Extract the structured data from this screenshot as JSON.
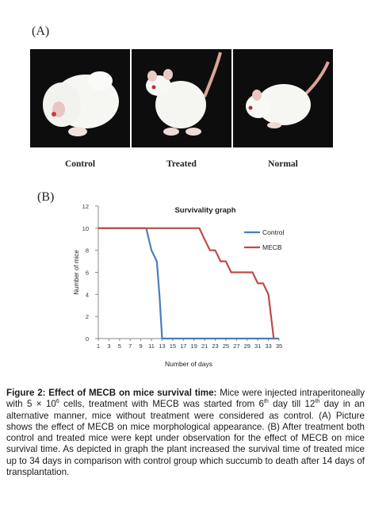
{
  "panel_a_label": "(A)",
  "panel_b_label": "(B)",
  "photos": [
    {
      "label": "Control"
    },
    {
      "label": "Treated"
    },
    {
      "label": "Normal"
    }
  ],
  "caption": {
    "figure_label": "Figure 2: Effect of MECB on mice survival time:",
    "p1": "Mice were injected intraperitoneally with 5 × 10",
    "p1_sup": "6",
    "p2": " cells, treatment with MECB was started from 6",
    "p2_sup": "th",
    "p3": " day till 12",
    "p3_sup": "th",
    "p4": " day in an alternative manner, mice without treatment were considered as control. (A) Picture shows the effect of MECB on mice morphological appearance. (B) After treatment both control and treated mice were kept under observation for the effect of MECB on mice survival time. As depicted in graph the plant increased the survival time of treated mice up to 34 days in comparison with control group which succumb to death after 14 days of transplantation."
  },
  "colors": {
    "control": "#4a7ebb",
    "mecb": "#be4b48"
  },
  "chart_data": {
    "type": "line",
    "title": "Survivality graph",
    "xlabel": "Number of days",
    "ylabel": "Number of mice",
    "xlim": [
      1,
      35
    ],
    "ylim": [
      0,
      12
    ],
    "xticks": [
      1,
      3,
      5,
      7,
      9,
      11,
      13,
      15,
      17,
      19,
      21,
      23,
      25,
      27,
      29,
      31,
      33,
      35
    ],
    "yticks": [
      0,
      2,
      4,
      6,
      8,
      10,
      12
    ],
    "grid": false,
    "legend_position": "right",
    "series": [
      {
        "name": "Control",
        "x": [
          1,
          10,
          11,
          12,
          12.5,
          13,
          14,
          35
        ],
        "y": [
          10,
          10,
          8,
          7,
          4,
          0,
          0,
          0
        ]
      },
      {
        "name": "MECB",
        "x": [
          1,
          20,
          21,
          22,
          23,
          24,
          25,
          26,
          27,
          30,
          31,
          32,
          33,
          34
        ],
        "y": [
          10,
          10,
          9,
          8,
          8,
          7,
          7,
          6,
          6,
          6,
          5,
          5,
          4,
          0
        ]
      }
    ]
  }
}
